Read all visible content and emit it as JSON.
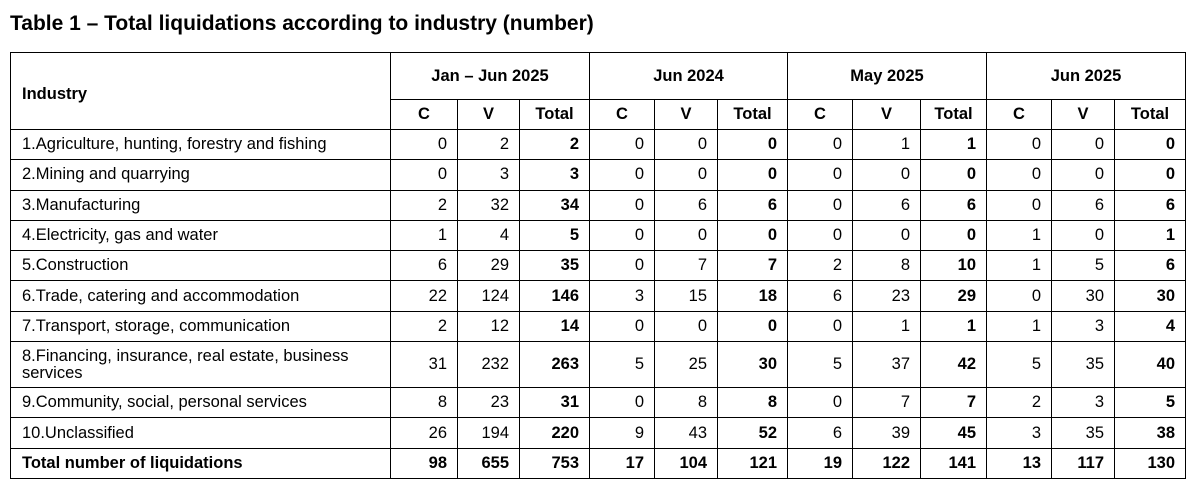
{
  "title": "Table 1 – Total liquidations according to industry (number)",
  "header": {
    "industry": "Industry",
    "groups": [
      "Jan – Jun 2025",
      "Jun 2024",
      "May 2025",
      "Jun 2025"
    ],
    "sub": [
      "C",
      "V",
      "Total"
    ]
  },
  "rows": [
    {
      "label": "1.Agriculture, hunting, forestry and fishing",
      "values": [
        "0",
        "2",
        "2",
        "0",
        "0",
        "0",
        "0",
        "1",
        "1",
        "0",
        "0",
        "0"
      ]
    },
    {
      "label": "2.Mining and quarrying",
      "values": [
        "0",
        "3",
        "3",
        "0",
        "0",
        "0",
        "0",
        "0",
        "0",
        "0",
        "0",
        "0"
      ]
    },
    {
      "label": "3.Manufacturing",
      "values": [
        "2",
        "32",
        "34",
        "0",
        "6",
        "6",
        "0",
        "6",
        "6",
        "0",
        "6",
        "6"
      ]
    },
    {
      "label": "4.Electricity, gas and water",
      "values": [
        "1",
        "4",
        "5",
        "0",
        "0",
        "0",
        "0",
        "0",
        "0",
        "1",
        "0",
        "1"
      ]
    },
    {
      "label": "5.Construction",
      "values": [
        "6",
        "29",
        "35",
        "0",
        "7",
        "7",
        "2",
        "8",
        "10",
        "1",
        "5",
        "6"
      ]
    },
    {
      "label": "6.Trade, catering and accommodation",
      "values": [
        "22",
        "124",
        "146",
        "3",
        "15",
        "18",
        "6",
        "23",
        "29",
        "0",
        "30",
        "30"
      ]
    },
    {
      "label": "7.Transport, storage, communication",
      "values": [
        "2",
        "12",
        "14",
        "0",
        "0",
        "0",
        "0",
        "1",
        "1",
        "1",
        "3",
        "4"
      ]
    },
    {
      "label": "8.Financing, insurance, real estate, business services",
      "values": [
        "31",
        "232",
        "263",
        "5",
        "25",
        "30",
        "5",
        "37",
        "42",
        "5",
        "35",
        "40"
      ]
    },
    {
      "label": "9.Community, social, personal services",
      "values": [
        "8",
        "23",
        "31",
        "0",
        "8",
        "8",
        "0",
        "7",
        "7",
        "2",
        "3",
        "5"
      ]
    },
    {
      "label": "10.Unclassified",
      "values": [
        "26",
        "194",
        "220",
        "9",
        "43",
        "52",
        "6",
        "39",
        "45",
        "3",
        "35",
        "38"
      ]
    }
  ],
  "total_row": {
    "label": "Total number of liquidations",
    "values": [
      "98",
      "655",
      "753",
      "17",
      "104",
      "121",
      "19",
      "122",
      "141",
      "13",
      "117",
      "130"
    ]
  }
}
